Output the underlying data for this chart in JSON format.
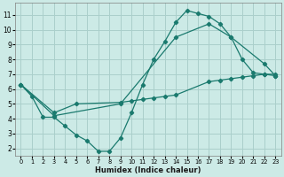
{
  "xlabel": "Humidex (Indice chaleur)",
  "bg_color": "#cceae6",
  "grid_color": "#aacfcb",
  "line_color": "#1a7a6e",
  "xlim": [
    -0.5,
    23.5
  ],
  "ylim": [
    1.5,
    11.8
  ],
  "xticks": [
    0,
    1,
    2,
    3,
    4,
    5,
    6,
    7,
    8,
    9,
    10,
    11,
    12,
    13,
    14,
    15,
    16,
    17,
    18,
    19,
    20,
    21,
    22,
    23
  ],
  "yticks": [
    2,
    3,
    4,
    5,
    6,
    7,
    8,
    9,
    10,
    11
  ],
  "line1_x": [
    0,
    1,
    2,
    3,
    4,
    5,
    6,
    7,
    8,
    9,
    10,
    11,
    12,
    13,
    14,
    15,
    16,
    17,
    18,
    19,
    20,
    21,
    22,
    23
  ],
  "line1_y": [
    6.3,
    5.5,
    4.1,
    4.1,
    3.5,
    2.9,
    2.5,
    1.8,
    1.8,
    2.7,
    4.4,
    6.3,
    8.0,
    9.2,
    10.5,
    11.3,
    11.1,
    10.9,
    10.4,
    9.5,
    8.0,
    7.1,
    7.0,
    6.9
  ],
  "line2_x": [
    0,
    3,
    5,
    9,
    10,
    11,
    12,
    13,
    14,
    17,
    18,
    19,
    20,
    21,
    22,
    23
  ],
  "line2_y": [
    6.3,
    4.4,
    5.0,
    5.1,
    5.2,
    5.3,
    5.4,
    5.5,
    5.6,
    6.5,
    6.6,
    6.7,
    6.8,
    6.9,
    7.0,
    7.0
  ],
  "line3_x": [
    0,
    3,
    9,
    14,
    17,
    19,
    22,
    23
  ],
  "line3_y": [
    6.3,
    4.2,
    5.0,
    9.5,
    10.4,
    9.5,
    7.7,
    6.9
  ]
}
